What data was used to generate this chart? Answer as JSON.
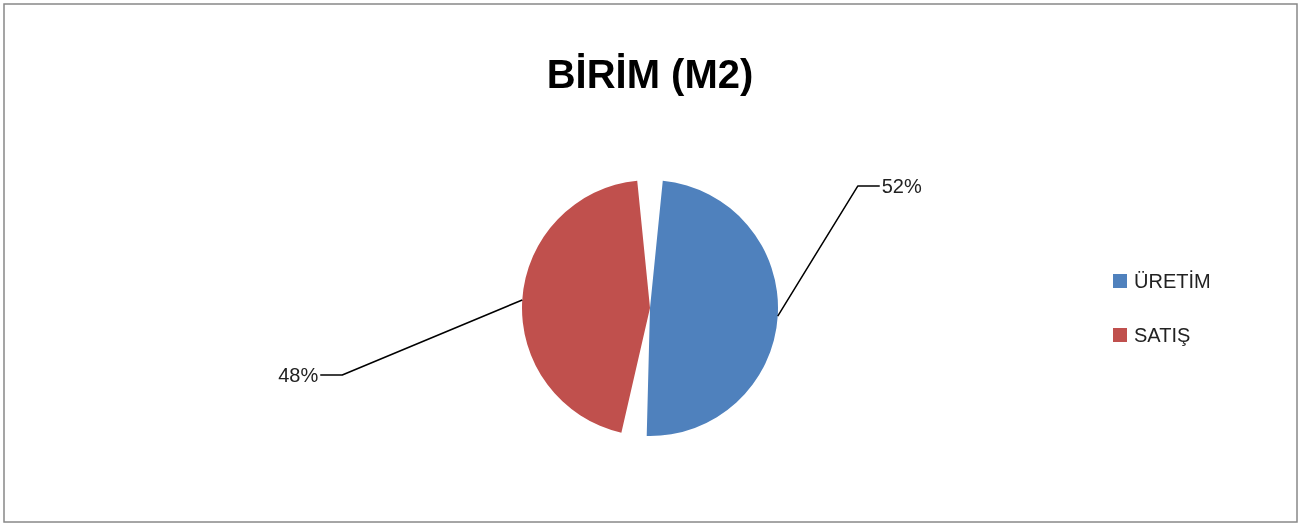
{
  "chart_data": {
    "type": "pie",
    "title": "BİRİM (M2)",
    "categories": [
      "ÜRETİM",
      "SATIŞ"
    ],
    "values": [
      52,
      48
    ],
    "colors": [
      "#4f81bd",
      "#c0504d"
    ],
    "value_labels": [
      "52%",
      "48%"
    ],
    "legend": "right"
  }
}
